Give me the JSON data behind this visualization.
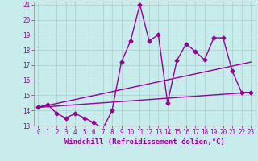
{
  "xlabel": "Windchill (Refroidissement éolien,°C)",
  "background_color": "#c8ecec",
  "line_color": "#990099",
  "grid_color": "#aacccc",
  "xlim": [
    -0.5,
    23.5
  ],
  "ylim": [
    13,
    21.2
  ],
  "yticks": [
    13,
    14,
    15,
    16,
    17,
    18,
    19,
    20,
    21
  ],
  "xticks": [
    0,
    1,
    2,
    3,
    4,
    5,
    6,
    7,
    8,
    9,
    10,
    11,
    12,
    13,
    14,
    15,
    16,
    17,
    18,
    19,
    20,
    21,
    22,
    23
  ],
  "series1_x": [
    0,
    1,
    2,
    3,
    4,
    5,
    6,
    7,
    8,
    9,
    10,
    11,
    12,
    13,
    14,
    15,
    16,
    17,
    18,
    19,
    20,
    21,
    22,
    23
  ],
  "series1_y": [
    14.2,
    14.4,
    13.8,
    13.5,
    13.8,
    13.5,
    13.2,
    12.8,
    14.0,
    17.2,
    18.6,
    21.0,
    18.6,
    19.0,
    14.5,
    17.3,
    18.4,
    17.9,
    17.35,
    18.8,
    18.8,
    16.6,
    15.2,
    15.2
  ],
  "series2_x": [
    0,
    23
  ],
  "series2_y": [
    14.2,
    17.2
  ],
  "series3_x": [
    0,
    23
  ],
  "series3_y": [
    14.2,
    15.2
  ],
  "marker": "D",
  "marker_size": 2.5,
  "line_width": 1.0,
  "tick_fontsize": 5.5,
  "xlabel_fontsize": 6.5
}
